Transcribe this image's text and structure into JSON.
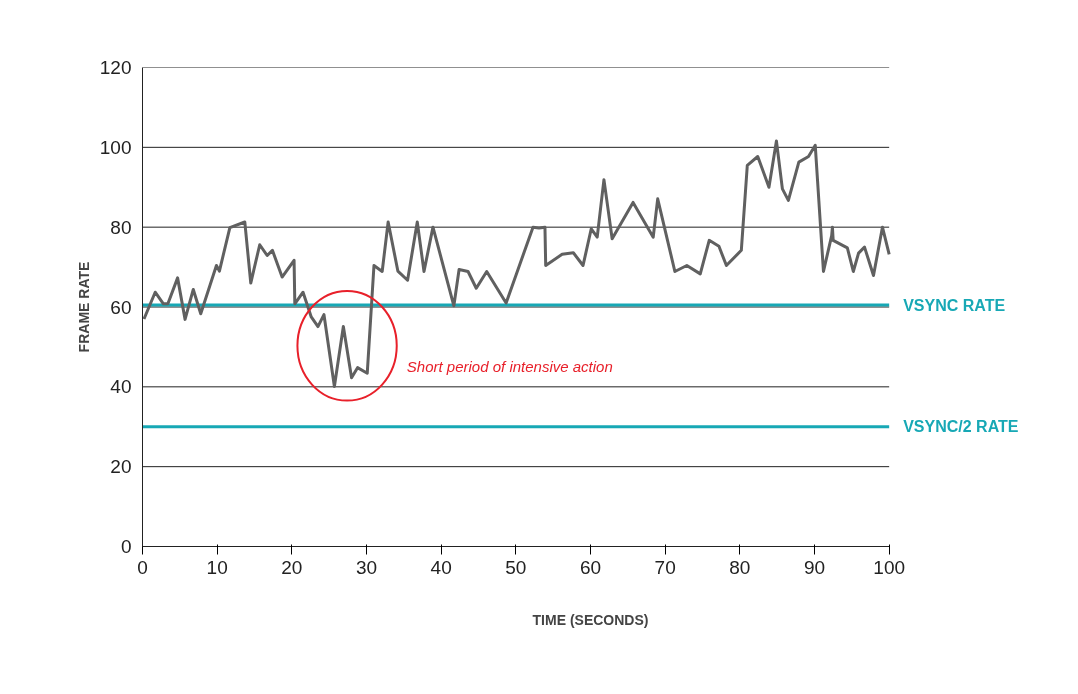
{
  "chart_data": {
    "type": "line",
    "xlabel": "TIME (SECONDS)",
    "ylabel": "FRAME RATE",
    "series": [
      {
        "color": "#606060",
        "x": [
          0.2,
          1.7,
          2.8,
          3.4,
          4.7,
          5.7,
          6.8,
          7.8,
          9.9,
          10.3,
          11.7,
          13.7,
          14.5,
          15.7,
          16.7,
          17.4,
          18.7,
          20.3,
          20.4,
          21.5,
          22.6,
          23.5,
          24.3,
          25.7,
          26.9,
          28,
          28.8,
          30.1,
          31,
          32.1,
          32.9,
          34.2,
          35.5,
          36.8,
          37.7,
          38.9,
          41.7,
          42.4,
          43.6,
          44.7,
          46.1,
          48.7,
          52.3,
          53.1,
          53.9,
          54,
          56.2,
          57.7,
          59,
          60.1,
          60.9,
          61.8,
          62.9,
          65.7,
          68.4,
          69,
          71.3,
          72.9,
          74.7,
          75.9,
          77.2,
          78.2,
          80.2,
          81,
          82.4,
          83.9,
          84.9,
          85.7,
          86.5,
          87.9,
          89.2,
          90.1,
          91.2,
          92.3,
          92.4,
          92.5,
          94.4,
          95.2,
          95.9,
          96.7,
          97.9,
          99.1,
          100
        ],
        "values": [
          57,
          63.7,
          60.8,
          60.8,
          67.3,
          56.9,
          64.4,
          58.3,
          70.4,
          69,
          79.9,
          81.3,
          66,
          75.6,
          72.9,
          74.2,
          67.5,
          71.7,
          60.8,
          63.7,
          57.5,
          55.1,
          58.1,
          40.1,
          55.1,
          42.3,
          44.8,
          43.4,
          70.4,
          68.9,
          81.3,
          69,
          66.7,
          81.3,
          68.9,
          80,
          60.3,
          69.4,
          68.9,
          64.7,
          68.9,
          61,
          80,
          79.8,
          80,
          70.4,
          73.2,
          73.6,
          70.4,
          79.6,
          77.5,
          91.9,
          77.1,
          86.2,
          77.5,
          87.1,
          68.9,
          70.4,
          68.3,
          76.7,
          75.2,
          70.4,
          74.2,
          95.5,
          97.7,
          90,
          101.6,
          89.6,
          86.7,
          96.3,
          97.7,
          100.5,
          68.9,
          77.9,
          80,
          76.7,
          74.8,
          68.9,
          73.5,
          75,
          67.9,
          80,
          73.2
        ]
      }
    ],
    "xlim": [
      0,
      100
    ],
    "ylim": [
      0,
      120
    ],
    "xticks": [
      0,
      10,
      20,
      30,
      40,
      50,
      60,
      70,
      80,
      90,
      100
    ],
    "yticks": [
      0,
      20,
      40,
      60,
      80,
      100,
      120
    ],
    "grid": "y",
    "marker": "none",
    "line_style": "solid",
    "ref_lines": [
      {
        "axis": "y",
        "value": 60.5,
        "label": "VSYNC RATE",
        "color": "#17a8b5"
      },
      {
        "axis": "y",
        "value": 30,
        "label": "VSYNC/2 RATE",
        "color": "#17a8b5"
      }
    ],
    "annotations": [
      "Short period of intensive action"
    ]
  }
}
